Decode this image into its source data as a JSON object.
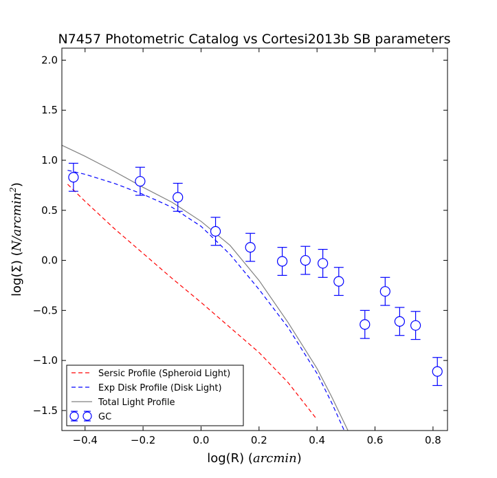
{
  "chart_data": {
    "type": "scatter",
    "title": "N7457 Photometric Catalog vs Cortesi2013b SB parameters",
    "xlabel": "log(R) (arcmin)",
    "ylabel": "log(Σ) (N/arcmin²)",
    "xlabel_parts": {
      "pre": "log(R) (",
      "math": "arcmin",
      "post": ")"
    },
    "ylabel_parts": {
      "pre": "log(Σ) (",
      "math": "N/arcmin",
      "sup": "2",
      "post": ")"
    },
    "xlim": [
      -0.48,
      0.85
    ],
    "ylim": [
      -1.7,
      2.12
    ],
    "xticks": [
      -0.4,
      -0.2,
      0.0,
      0.2,
      0.4,
      0.6,
      0.8
    ],
    "xtick_labels": [
      "−0.4",
      "−0.2",
      "0.0",
      "0.2",
      "0.4",
      "0.6",
      "0.8"
    ],
    "yticks": [
      -1.5,
      -1.0,
      -0.5,
      0.0,
      0.5,
      1.0,
      1.5,
      2.0
    ],
    "ytick_labels": [
      "−1.5",
      "−1.0",
      "−0.5",
      "0.0",
      "0.5",
      "1.0",
      "1.5",
      "2.0"
    ],
    "grid": false,
    "legend_position": "lower-left",
    "series": [
      {
        "name": "Sersic Profile (Spheroid Light)",
        "kind": "line",
        "style": "dashed",
        "color": "#ff0000",
        "x": [
          -0.46,
          -0.4,
          -0.3,
          -0.2,
          -0.1,
          0.0,
          0.1,
          0.2,
          0.3,
          0.4
        ],
        "y": [
          0.76,
          0.59,
          0.32,
          0.07,
          -0.18,
          -0.42,
          -0.67,
          -0.92,
          -1.22,
          -1.59
        ]
      },
      {
        "name": "Exp Disk Profile (Disk Light)",
        "kind": "line",
        "style": "dashed",
        "color": "#0000ff",
        "x": [
          -0.46,
          -0.4,
          -0.3,
          -0.2,
          -0.1,
          0.0,
          0.1,
          0.2,
          0.3,
          0.4,
          0.45,
          0.5
        ],
        "y": [
          0.9,
          0.86,
          0.77,
          0.66,
          0.53,
          0.34,
          0.06,
          -0.29,
          -0.67,
          -1.13,
          -1.42,
          -1.74
        ]
      },
      {
        "name": "Total Light Profile",
        "kind": "line",
        "style": "solid",
        "color": "#808080",
        "x": [
          -0.48,
          -0.4,
          -0.3,
          -0.2,
          -0.1,
          0.0,
          0.1,
          0.2,
          0.3,
          0.4,
          0.45,
          0.51
        ],
        "y": [
          1.15,
          1.04,
          0.89,
          0.73,
          0.58,
          0.39,
          0.15,
          -0.2,
          -0.62,
          -1.08,
          -1.36,
          -1.72
        ]
      },
      {
        "name": "GC",
        "kind": "errorbar",
        "color": "#0000ff",
        "x": [
          -0.44,
          -0.21,
          -0.08,
          0.05,
          0.17,
          0.28,
          0.36,
          0.42,
          0.475,
          0.565,
          0.635,
          0.685,
          0.74,
          0.815
        ],
        "y": [
          0.83,
          0.79,
          0.63,
          0.29,
          0.13,
          -0.01,
          0.0,
          -0.03,
          -0.21,
          -0.64,
          -0.31,
          -0.61,
          -0.65,
          -1.11
        ],
        "yerr": [
          0.14,
          0.14,
          0.14,
          0.14,
          0.14,
          0.14,
          0.14,
          0.14,
          0.14,
          0.14,
          0.14,
          0.14,
          0.14,
          0.14
        ]
      }
    ]
  }
}
